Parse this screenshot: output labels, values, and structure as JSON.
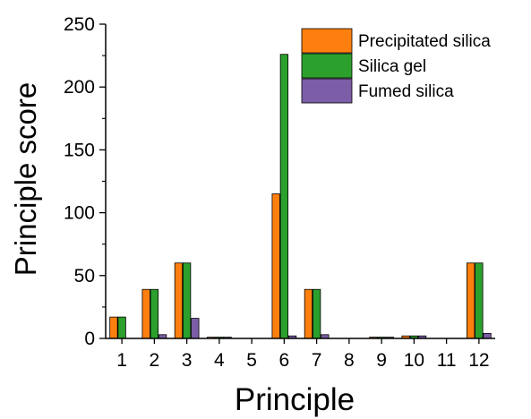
{
  "chart_data": {
    "type": "bar",
    "xlabel": "Principle",
    "ylabel": "Principle score",
    "categories": [
      "1",
      "2",
      "3",
      "4",
      "5",
      "6",
      "7",
      "8",
      "9",
      "10",
      "11",
      "12"
    ],
    "ylim": [
      0,
      250
    ],
    "yticks": [
      0,
      50,
      100,
      150,
      200,
      250
    ],
    "grid": false,
    "legend_position": "top-right",
    "series": [
      {
        "name": "Precipitated silica",
        "color": "#ff7f0e",
        "values": [
          17,
          39,
          60,
          1,
          0,
          115,
          39,
          0,
          1,
          2,
          0,
          60
        ]
      },
      {
        "name": "Silica gel",
        "color": "#2ca02c",
        "values": [
          17,
          39,
          60,
          1,
          0,
          226,
          39,
          0,
          1,
          2,
          0,
          60
        ]
      },
      {
        "name": "Fumed silica",
        "color": "#7b5ea7",
        "values": [
          0,
          3,
          16,
          1,
          0,
          2,
          3,
          0,
          1,
          2,
          0,
          4
        ]
      }
    ]
  }
}
